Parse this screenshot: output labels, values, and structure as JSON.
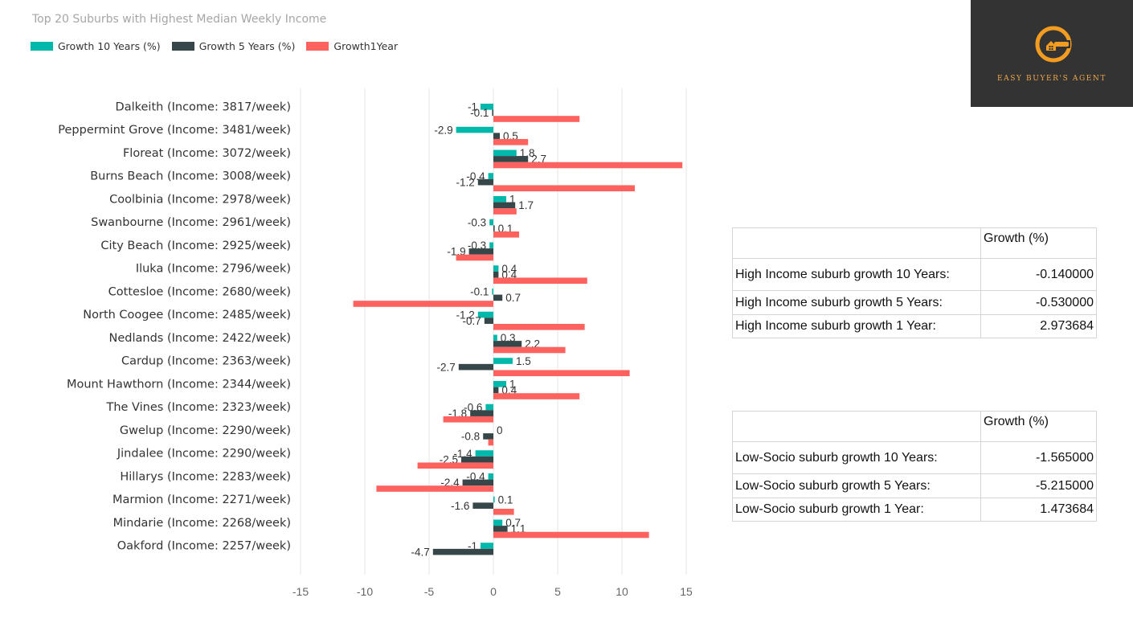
{
  "chart_data": {
    "type": "bar",
    "orientation": "horizontal",
    "title": "Top 20 Suburbs with Highest Median Weekly Income",
    "categories": [
      "Dalkeith (Income:  3817/week)",
      "Peppermint Grove (Income:  3481/week)",
      "Floreat (Income:  3072/week)",
      "Burns Beach (Income:  3008/week)",
      "Coolbinia (Income:  2978/week)",
      "Swanbourne (Income:  2961/week)",
      "City Beach (Income:  2925/week)",
      "Iluka (Income:  2796/week)",
      "Cottesloe (Income:  2680/week)",
      "North Coogee (Income:  2485/week)",
      "Nedlands (Income:  2422/week)",
      "Cardup (Income:  2363/week)",
      "Mount Hawthorn (Income:  2344/week)",
      "The Vines (Income:  2323/week)",
      "Gwelup (Income:  2290/week)",
      "Jindalee (Income:  2290/week)",
      "Hillarys (Income:  2283/week)",
      "Marmion (Income:  2271/week)",
      "Mindarie (Income:  2268/week)",
      "Oakford (Income:  2257/week)"
    ],
    "series": [
      {
        "name": "Growth 10 Years (%)",
        "color": "#01b8aa",
        "values": [
          -1,
          -2.9,
          1.8,
          -0.4,
          1,
          -0.3,
          -0.3,
          0.4,
          -0.1,
          -1.2,
          0.3,
          1.5,
          1,
          -0.6,
          0,
          -1.4,
          -0.4,
          0.1,
          0.7,
          -1
        ],
        "labels": [
          "-1",
          "-2.9",
          "1.8",
          "-0.4",
          "1",
          "-0.3",
          "-0.3",
          "0.4",
          "-0.1",
          "-1.2",
          "0.3",
          "1.5",
          "1",
          "-0.6",
          "0",
          "-1.4",
          "-0.4",
          "0.1",
          "0.7",
          "-1"
        ]
      },
      {
        "name": "Growth 5 Years (%)",
        "color": "#374649",
        "values": [
          -0.1,
          0.5,
          2.7,
          -1.2,
          1.7,
          0.1,
          -1.9,
          0.4,
          0.7,
          -0.7,
          2.2,
          -2.7,
          0.4,
          -1.8,
          -0.8,
          -2.5,
          -2.4,
          -1.6,
          1.1,
          -4.7
        ],
        "labels": [
          "-0.1",
          "0.5",
          "2.7",
          "-1.2",
          "1.7",
          "0.1",
          "-1.9",
          "0.4",
          "0.7",
          "-0.7",
          "2.2",
          "-2.7",
          "0.4",
          "-1.8",
          "-0.8",
          "-2.5",
          "-2.4",
          "-1.6",
          "1.1",
          "-4.7"
        ]
      },
      {
        "name": "Growth1Year",
        "color": "#fd625e",
        "values": [
          6.7,
          2.7,
          14.7,
          11,
          1.8,
          2,
          -2.9,
          7.3,
          -10.9,
          7.1,
          5.6,
          10.6,
          6.7,
          -3.9,
          -0.4,
          -5.9,
          -9.1,
          1.6,
          12.1,
          0
        ],
        "labels": []
      }
    ],
    "xticks": [
      "-15",
      "-10",
      "-5",
      "0",
      "5",
      "10",
      "15"
    ],
    "xlim": [
      -15,
      15
    ],
    "grid": true,
    "legend": "top-left"
  },
  "logo": {
    "text": "EASY BUYER'S AGENT",
    "accent": "#f39c22",
    "background": "#333333"
  },
  "tables": [
    {
      "header": [
        "",
        "Growth (%)"
      ],
      "rows": [
        [
          "High Income suburb growth 10 Years:",
          "-0.140000"
        ],
        [
          "High Income suburb growth 5 Years:",
          "-0.530000"
        ],
        [
          "High Income suburb growth 1 Year:",
          "2.973684"
        ]
      ]
    },
    {
      "header": [
        "",
        "Growth (%)"
      ],
      "rows": [
        [
          "Low-Socio suburb growth 10 Years:",
          "-1.565000"
        ],
        [
          "Low-Socio suburb growth 5 Years:",
          "-5.215000"
        ],
        [
          "Low-Socio suburb growth 1 Year:",
          "1.473684"
        ]
      ]
    }
  ]
}
